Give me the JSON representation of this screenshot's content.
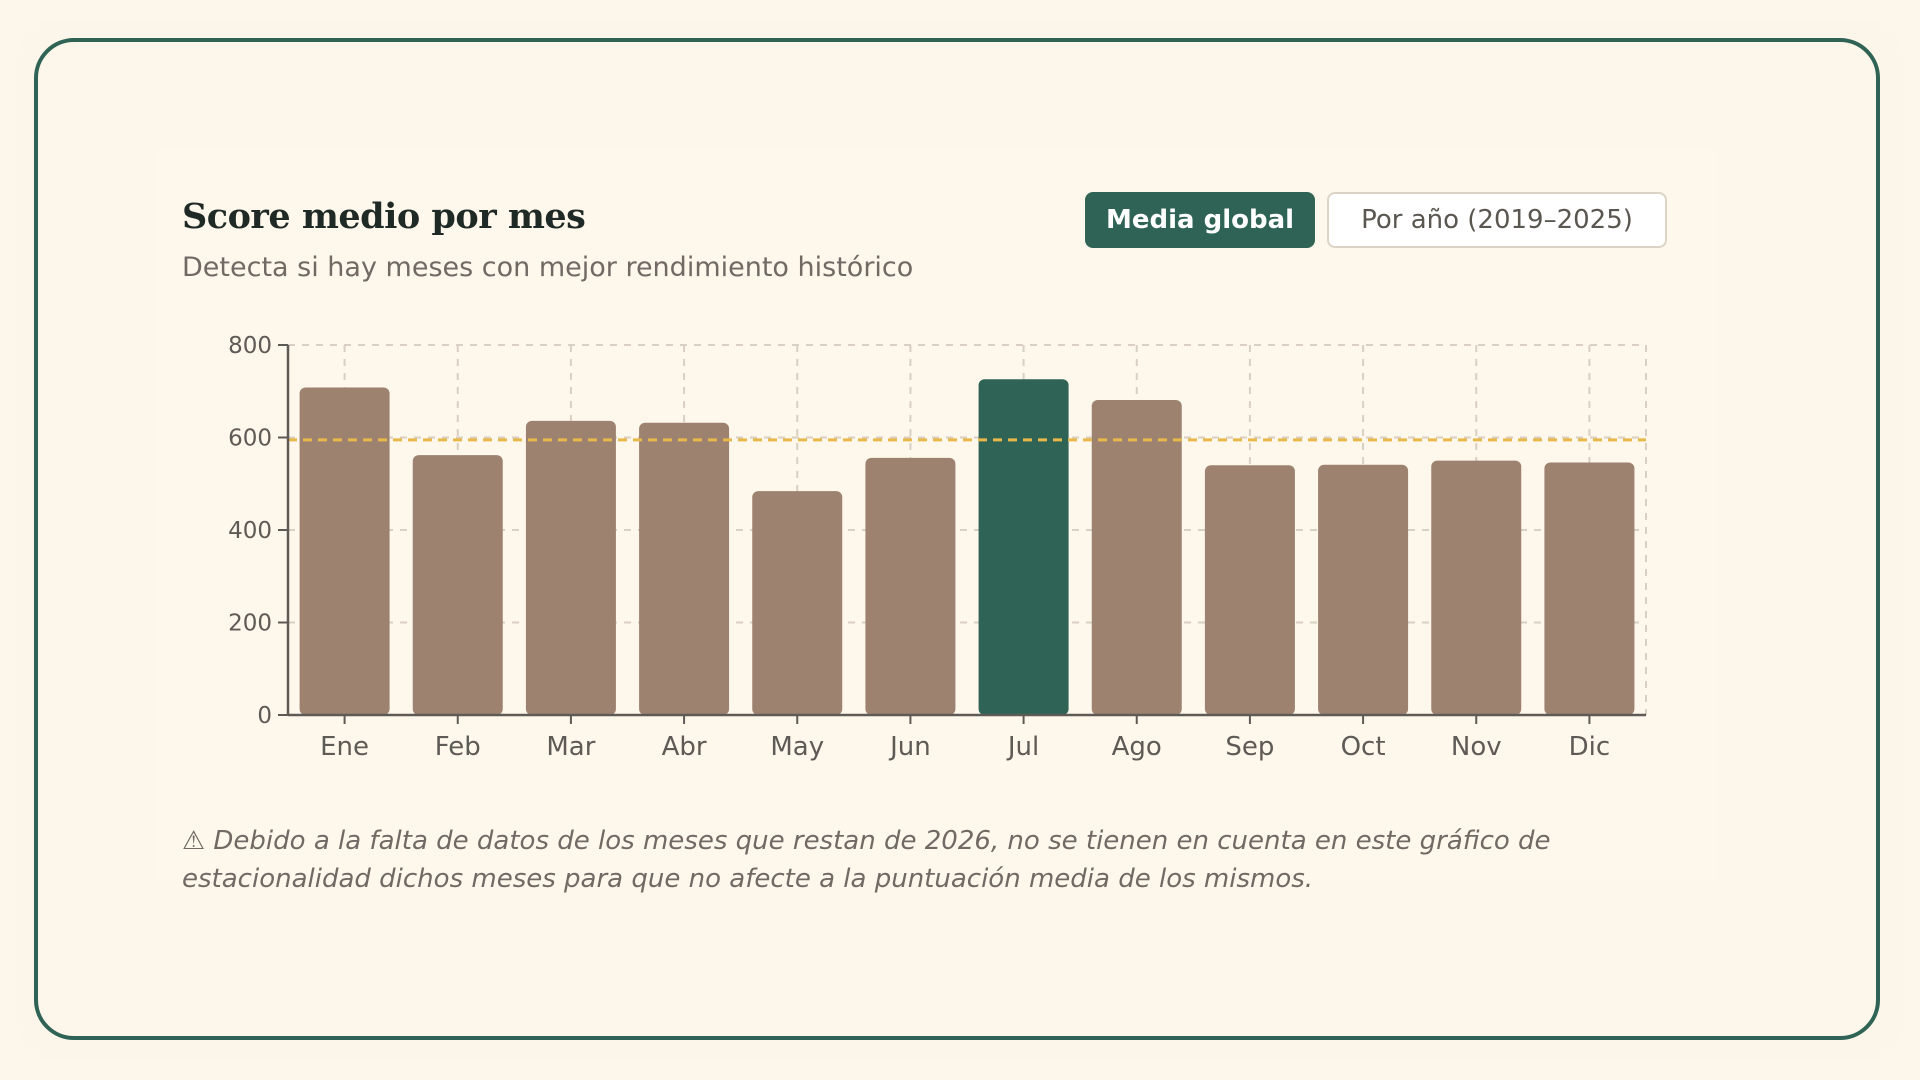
{
  "header": {
    "title": "Score medio por mes",
    "subtitle": "Detecta si hay meses con mejor rendimiento histórico"
  },
  "toggles": {
    "global_label": "Media global",
    "by_year_label": "Por año (2019–2025)"
  },
  "note": "⚠ Debido a la falta de datos de los meses que restan de 2026, no se tienen en cuenta en este gráfico de estacionalidad dichos meses para que no afecte a la puntuación media de los mismos.",
  "colors": {
    "bar": "#9e8270",
    "highlight": "#2e6355",
    "reference_line": "#e8b84a",
    "accent": "#2e6355"
  },
  "chart_data": {
    "type": "bar",
    "title": "Score medio por mes",
    "categories": [
      "Ene",
      "Feb",
      "Mar",
      "Abr",
      "May",
      "Jun",
      "Jul",
      "Ago",
      "Sep",
      "Oct",
      "Nov",
      "Dic"
    ],
    "values": [
      708,
      562,
      636,
      632,
      484,
      556,
      726,
      681,
      540,
      541,
      550,
      546
    ],
    "highlight_category": "Jul",
    "reference_line_value": 595,
    "ylim": [
      0,
      800
    ],
    "yticks": [
      0,
      200,
      400,
      600,
      800
    ],
    "xlabel": "",
    "ylabel": "",
    "grid": true,
    "legend": "none"
  }
}
